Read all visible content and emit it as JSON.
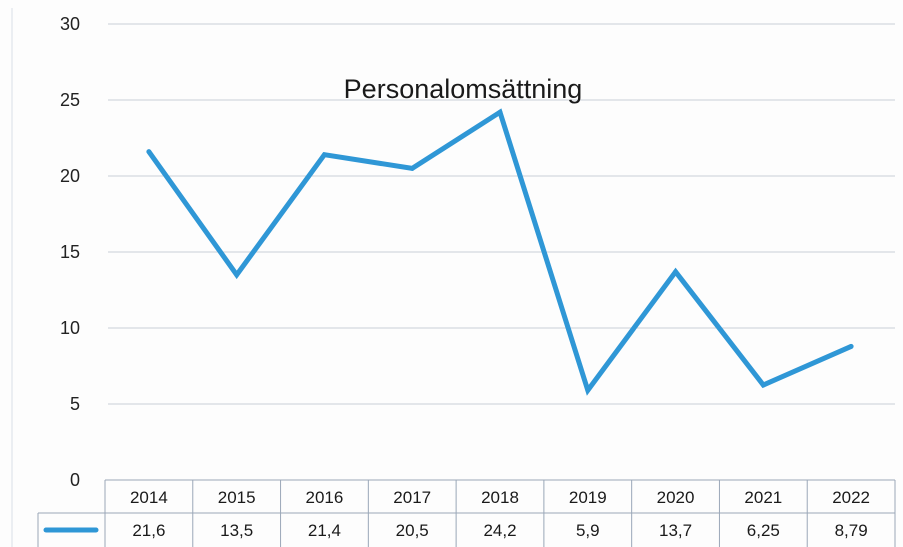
{
  "chart_data": {
    "type": "line",
    "title": "Personalomsättning",
    "xlabel": "",
    "ylabel": "",
    "categories": [
      "2014",
      "2015",
      "2016",
      "2017",
      "2018",
      "2019",
      "2020",
      "2021",
      "2022"
    ],
    "series": [
      {
        "values": [
          21.6,
          13.5,
          21.4,
          20.5,
          24.2,
          5.9,
          13.7,
          6.25,
          8.79
        ],
        "value_labels": [
          "21,6",
          "13,5",
          "21,4",
          "20,5",
          "24,2",
          "5,9",
          "13,7",
          "6,25",
          "8,79"
        ],
        "color": "#2f97d6"
      }
    ],
    "yticks": [
      "0",
      "5",
      "10",
      "15",
      "20",
      "25",
      "30"
    ],
    "ylim": [
      0,
      30
    ],
    "grid": true,
    "legend": "data table below x-axis"
  }
}
